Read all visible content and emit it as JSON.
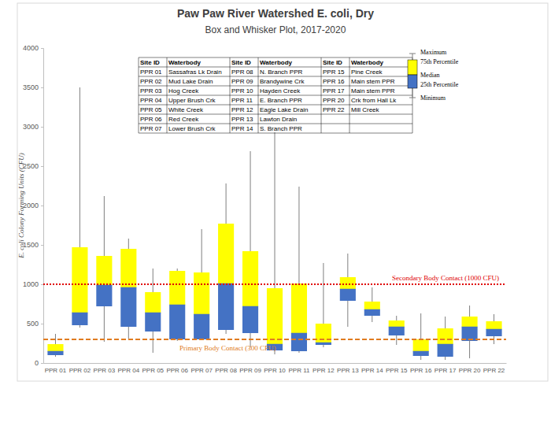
{
  "chart_data": {
    "type": "box",
    "title": "Paw Paw River Watershed E. coli, Dry",
    "subtitle": "Box and Whisker Plot, 2017-2020",
    "y_label": "E. coli Colony Forming Units (CFU)",
    "categories": [
      "PPR 01",
      "PPR 02",
      "PPR 03",
      "PPR 04",
      "PPR 05",
      "PPR 06",
      "PPR 07",
      "PPR 08",
      "PPR 09",
      "PPR 10",
      "PPR 11",
      "PPR 12",
      "PPR 13",
      "PPR 14",
      "PPR 15",
      "PPR 16",
      "PPR 17",
      "PPR 20",
      "PPR 22"
    ],
    "series": [
      {
        "name": "Maximum",
        "values": [
          370,
          3500,
          2120,
          1580,
          1200,
          1200,
          1700,
          2280,
          2690,
          2930,
          2240,
          1270,
          1390,
          960,
          600,
          630,
          590,
          730,
          620
        ]
      },
      {
        "name": "75th Percentile",
        "color": "#ffff00",
        "values": [
          240,
          1470,
          1360,
          1450,
          900,
          1170,
          1150,
          1770,
          1420,
          950,
          1010,
          500,
          1090,
          780,
          540,
          300,
          440,
          590,
          530
        ]
      },
      {
        "name": "Median",
        "values": [
          150,
          640,
          990,
          960,
          640,
          740,
          620,
          1010,
          720,
          240,
          380,
          260,
          940,
          680,
          460,
          150,
          240,
          460,
          430
        ]
      },
      {
        "name": "25th Percentile",
        "color": "#4472c4",
        "values": [
          100,
          480,
          720,
          460,
          400,
          300,
          300,
          420,
          380,
          160,
          150,
          230,
          790,
          600,
          350,
          90,
          80,
          280,
          340
        ]
      },
      {
        "name": "Minimum",
        "values": [
          80,
          450,
          270,
          310,
          130,
          280,
          300,
          370,
          200,
          110,
          130,
          200,
          460,
          520,
          230,
          40,
          40,
          60,
          240
        ]
      }
    ],
    "ylim": [
      0,
      4000
    ],
    "yticks": [
      0,
      500,
      1000,
      1500,
      2000,
      2500,
      3000,
      3500,
      4000
    ],
    "grid": false,
    "reference_lines": [
      {
        "label": "Secondary Body Contact (1000 CFU)",
        "value": 1000,
        "color": "#e00000",
        "line_style": "dotted"
      },
      {
        "label": "Primary Body Contact (300 CFU)",
        "value": 300,
        "color": "#e07b20",
        "line_style": "dashed"
      }
    ],
    "site_table": {
      "header": [
        "Site ID",
        "Waterbody"
      ],
      "rows": [
        [
          "PPR 01",
          "Sassafras Lk Drain"
        ],
        [
          "PPR 02",
          "Mud Lake Drain"
        ],
        [
          "PPR 03",
          "Hog Creek"
        ],
        [
          "PPR 04",
          "Upper Brush Crk"
        ],
        [
          "PPR 05",
          "White Creek"
        ],
        [
          "PPR 06",
          "Red Creek"
        ],
        [
          "PPR 07",
          "Lower Brush Crk"
        ],
        [
          "PPR 08",
          "N. Branch PPR"
        ],
        [
          "PPR 09",
          "Brandywine Crk"
        ],
        [
          "PPR 10",
          "Hayden Creek"
        ],
        [
          "PPR 11",
          "E. Branch PPR"
        ],
        [
          "PPR 12",
          "Eagle Lake Drain"
        ],
        [
          "PPR 13",
          "Lawton Drain"
        ],
        [
          "PPR 14",
          "S. Branch PPR"
        ],
        [
          "PPR 15",
          "Pine Creek"
        ],
        [
          "PPR 16",
          "Main stem PPR"
        ],
        [
          "PPR 17",
          "Main stem PPR"
        ],
        [
          "PPR 20",
          "Crk from Hall Lk"
        ],
        [
          "PPR 22",
          "Mill Creek"
        ]
      ]
    }
  }
}
